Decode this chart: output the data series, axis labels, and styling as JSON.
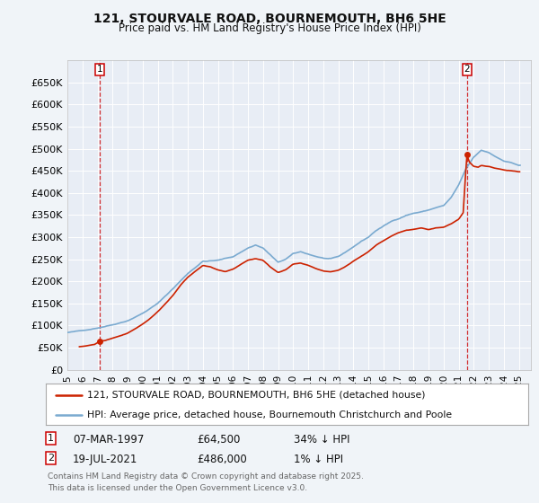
{
  "title1": "121, STOURVALE ROAD, BOURNEMOUTH, BH6 5HE",
  "title2": "Price paid vs. HM Land Registry's House Price Index (HPI)",
  "background_color": "#f0f4f8",
  "plot_bg_color": "#e8edf5",
  "grid_color": "#ffffff",
  "hpi_color": "#7aaad0",
  "house_color": "#cc2200",
  "annotation1": [
    "1",
    "07-MAR-1997",
    "£64,500",
    "34% ↓ HPI"
  ],
  "annotation2": [
    "2",
    "19-JUL-2021",
    "£486,000",
    "1% ↓ HPI"
  ],
  "legend1": "121, STOURVALE ROAD, BOURNEMOUTH, BH6 5HE (detached house)",
  "legend2": "HPI: Average price, detached house, Bournemouth Christchurch and Poole",
  "footer": "Contains HM Land Registry data © Crown copyright and database right 2025.\nThis data is licensed under the Open Government Licence v3.0.",
  "ylim": [
    0,
    700000
  ],
  "yticks": [
    0,
    50000,
    100000,
    150000,
    200000,
    250000,
    300000,
    350000,
    400000,
    450000,
    500000,
    550000,
    600000,
    650000
  ],
  "ytick_labels": [
    "£0",
    "£50K",
    "£100K",
    "£150K",
    "£200K",
    "£250K",
    "£300K",
    "£350K",
    "£400K",
    "£450K",
    "£500K",
    "£550K",
    "£600K",
    "£650K"
  ],
  "xtick_years": [
    "1995",
    "1996",
    "1997",
    "1998",
    "1999",
    "2000",
    "2001",
    "2002",
    "2003",
    "2004",
    "2005",
    "2006",
    "2007",
    "2008",
    "2009",
    "2010",
    "2011",
    "2012",
    "2013",
    "2014",
    "2015",
    "2016",
    "2017",
    "2018",
    "2019",
    "2020",
    "2021",
    "2022",
    "2023",
    "2024",
    "2025"
  ],
  "marker1_x": 1997.17,
  "marker1_y": 64500,
  "marker2_x": 2021.54,
  "marker2_y": 486000,
  "xlim_left": 1995.0,
  "xlim_right": 2025.8
}
